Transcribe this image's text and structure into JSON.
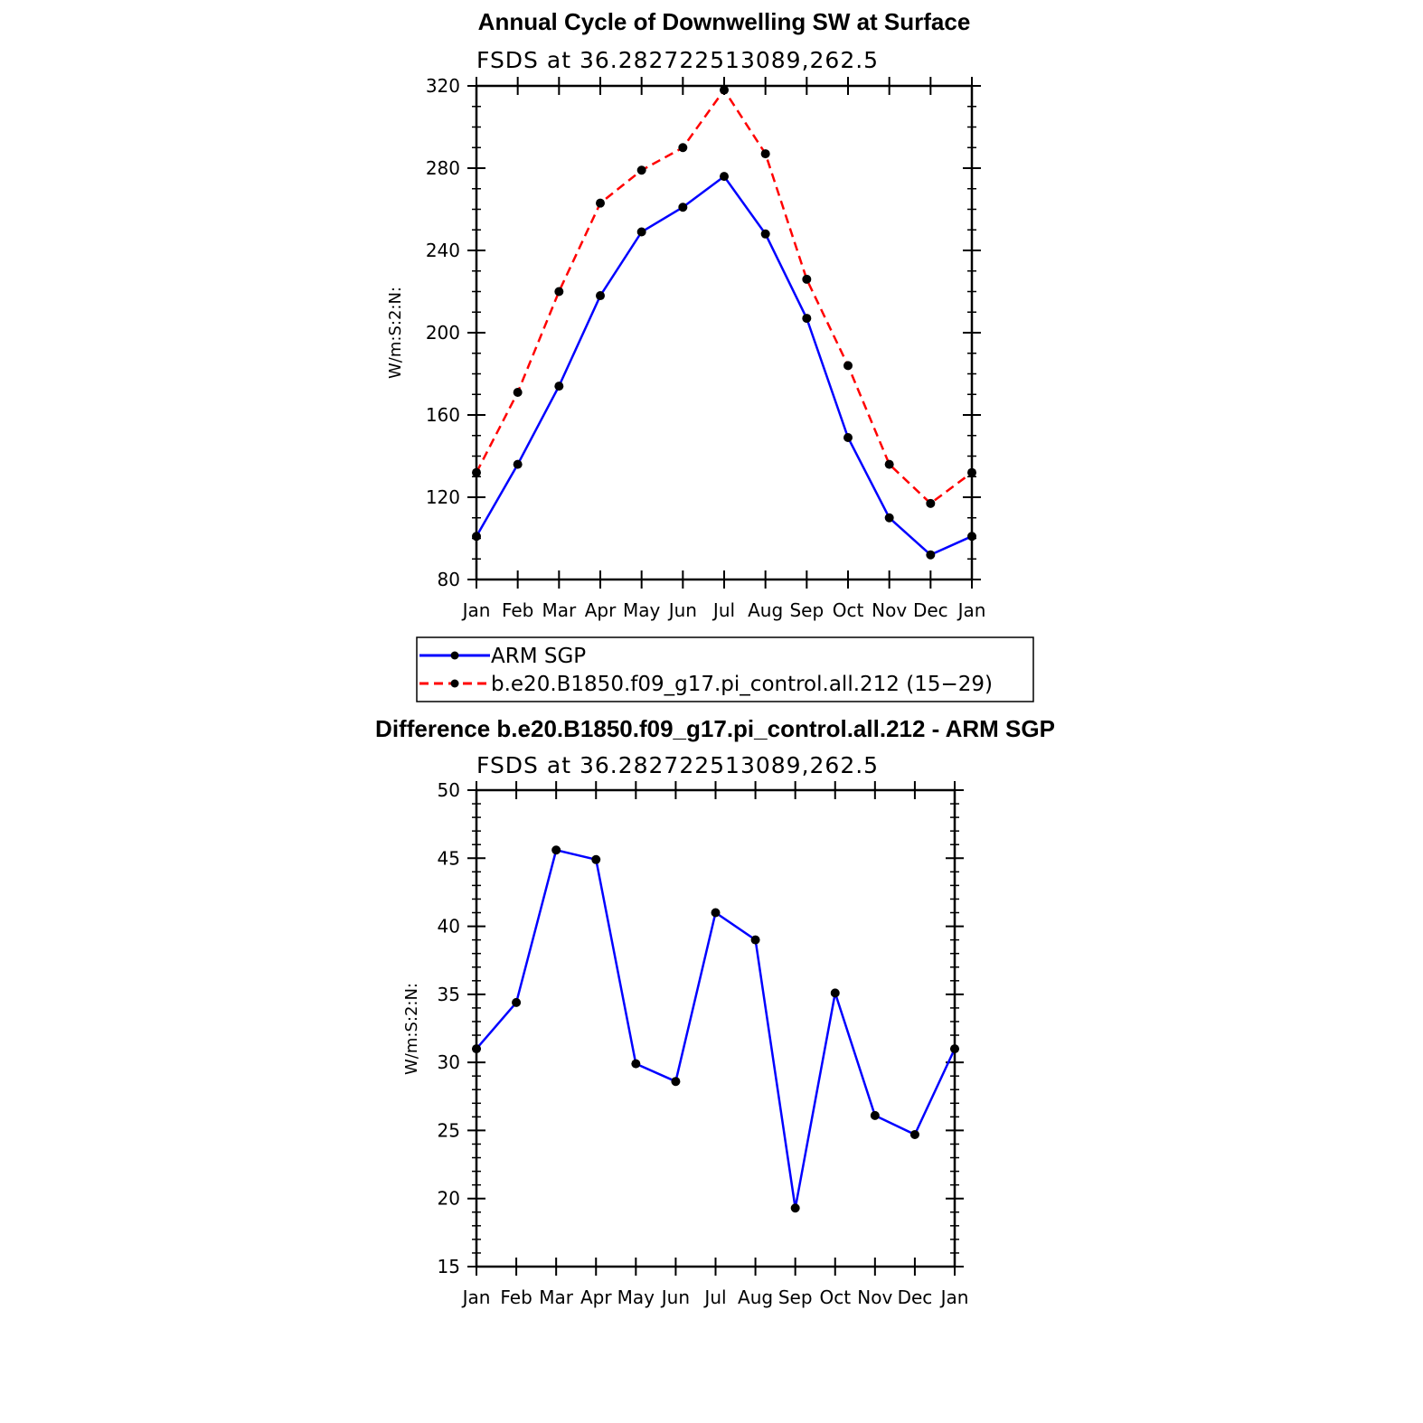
{
  "chart_data": [
    {
      "type": "line",
      "title": "Annual Cycle of Downwelling SW at Surface",
      "subtitle": "FSDS at 36.282722513089,262.5",
      "ylabel": "W/m:S:2:N:",
      "xlabel": "",
      "ylim": [
        80,
        320
      ],
      "yticks": [
        "80",
        "120",
        "160",
        "200",
        "240",
        "280",
        "320"
      ],
      "categories": [
        "Jan",
        "Feb",
        "Mar",
        "Apr",
        "May",
        "Jun",
        "Jul",
        "Aug",
        "Sep",
        "Oct",
        "Nov",
        "Dec",
        "Jan"
      ],
      "series": [
        {
          "name": "ARM SGP",
          "color": "#0000ff",
          "dash": "solid",
          "values": [
            101,
            136,
            174,
            218,
            249,
            261,
            276,
            248,
            207,
            149,
            110,
            92,
            101
          ]
        },
        {
          "name": "b.e20.B1850.f09_g17.pi_control.all.212 (15−29)",
          "color": "#ff0000",
          "dash": "dashed",
          "values": [
            132,
            171,
            220,
            263,
            279,
            290,
            318,
            287,
            226,
            184,
            136,
            117,
            132
          ]
        }
      ],
      "legend": "below"
    },
    {
      "type": "line",
      "title": "Difference b.e20.B1850.f09_g17.pi_control.all.212 - ARM SGP",
      "subtitle": "FSDS at 36.282722513089,262.5",
      "ylabel": "W/m:S:2:N:",
      "xlabel": "",
      "ylim": [
        15,
        50
      ],
      "yticks": [
        "15",
        "20",
        "25",
        "30",
        "35",
        "40",
        "45",
        "50"
      ],
      "categories": [
        "Jan",
        "Feb",
        "Mar",
        "Apr",
        "May",
        "Jun",
        "Jul",
        "Aug",
        "Sep",
        "Oct",
        "Nov",
        "Dec",
        "Jan"
      ],
      "series": [
        {
          "name": "Difference",
          "color": "#0000ff",
          "dash": "solid",
          "values": [
            31.0,
            34.4,
            45.6,
            44.9,
            29.9,
            28.6,
            41.0,
            39.0,
            19.3,
            35.1,
            26.1,
            24.7,
            31.0
          ]
        }
      ]
    }
  ]
}
